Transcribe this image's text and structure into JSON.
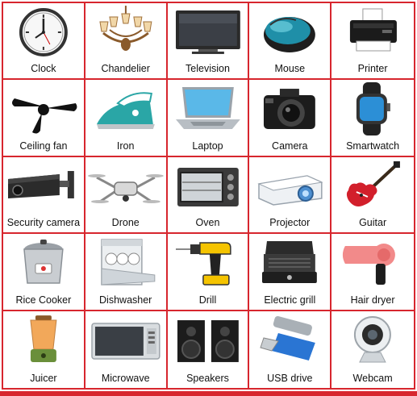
{
  "items": [
    {
      "label": "Clock",
      "icon": "clock-icon"
    },
    {
      "label": "Chandelier",
      "icon": "chandelier-icon"
    },
    {
      "label": "Television",
      "icon": "television-icon"
    },
    {
      "label": "Mouse",
      "icon": "mouse-icon"
    },
    {
      "label": "Printer",
      "icon": "printer-icon"
    },
    {
      "label": "Ceiling fan",
      "icon": "ceiling-fan-icon"
    },
    {
      "label": "Iron",
      "icon": "iron-icon"
    },
    {
      "label": "Laptop",
      "icon": "laptop-icon"
    },
    {
      "label": "Camera",
      "icon": "camera-icon"
    },
    {
      "label": "Smartwatch",
      "icon": "smartwatch-icon"
    },
    {
      "label": "Security camera",
      "icon": "security-camera-icon"
    },
    {
      "label": "Drone",
      "icon": "drone-icon"
    },
    {
      "label": "Oven",
      "icon": "oven-icon"
    },
    {
      "label": "Projector",
      "icon": "projector-icon"
    },
    {
      "label": "Guitar",
      "icon": "guitar-icon"
    },
    {
      "label": "Rice Cooker",
      "icon": "rice-cooker-icon"
    },
    {
      "label": "Dishwasher",
      "icon": "dishwasher-icon"
    },
    {
      "label": "Drill",
      "icon": "drill-icon"
    },
    {
      "label": "Electric grill",
      "icon": "electric-grill-icon"
    },
    {
      "label": "Hair dryer",
      "icon": "hair-dryer-icon"
    },
    {
      "label": "Juicer",
      "icon": "juicer-icon"
    },
    {
      "label": "Microwave",
      "icon": "microwave-icon"
    },
    {
      "label": "Speakers",
      "icon": "speakers-icon"
    },
    {
      "label": "USB drive",
      "icon": "usb-drive-icon"
    },
    {
      "label": "Webcam",
      "icon": "webcam-icon"
    }
  ],
  "colors": {
    "grid_border": "#d7262e",
    "label_text": "#111111",
    "background": "#ffffff"
  }
}
